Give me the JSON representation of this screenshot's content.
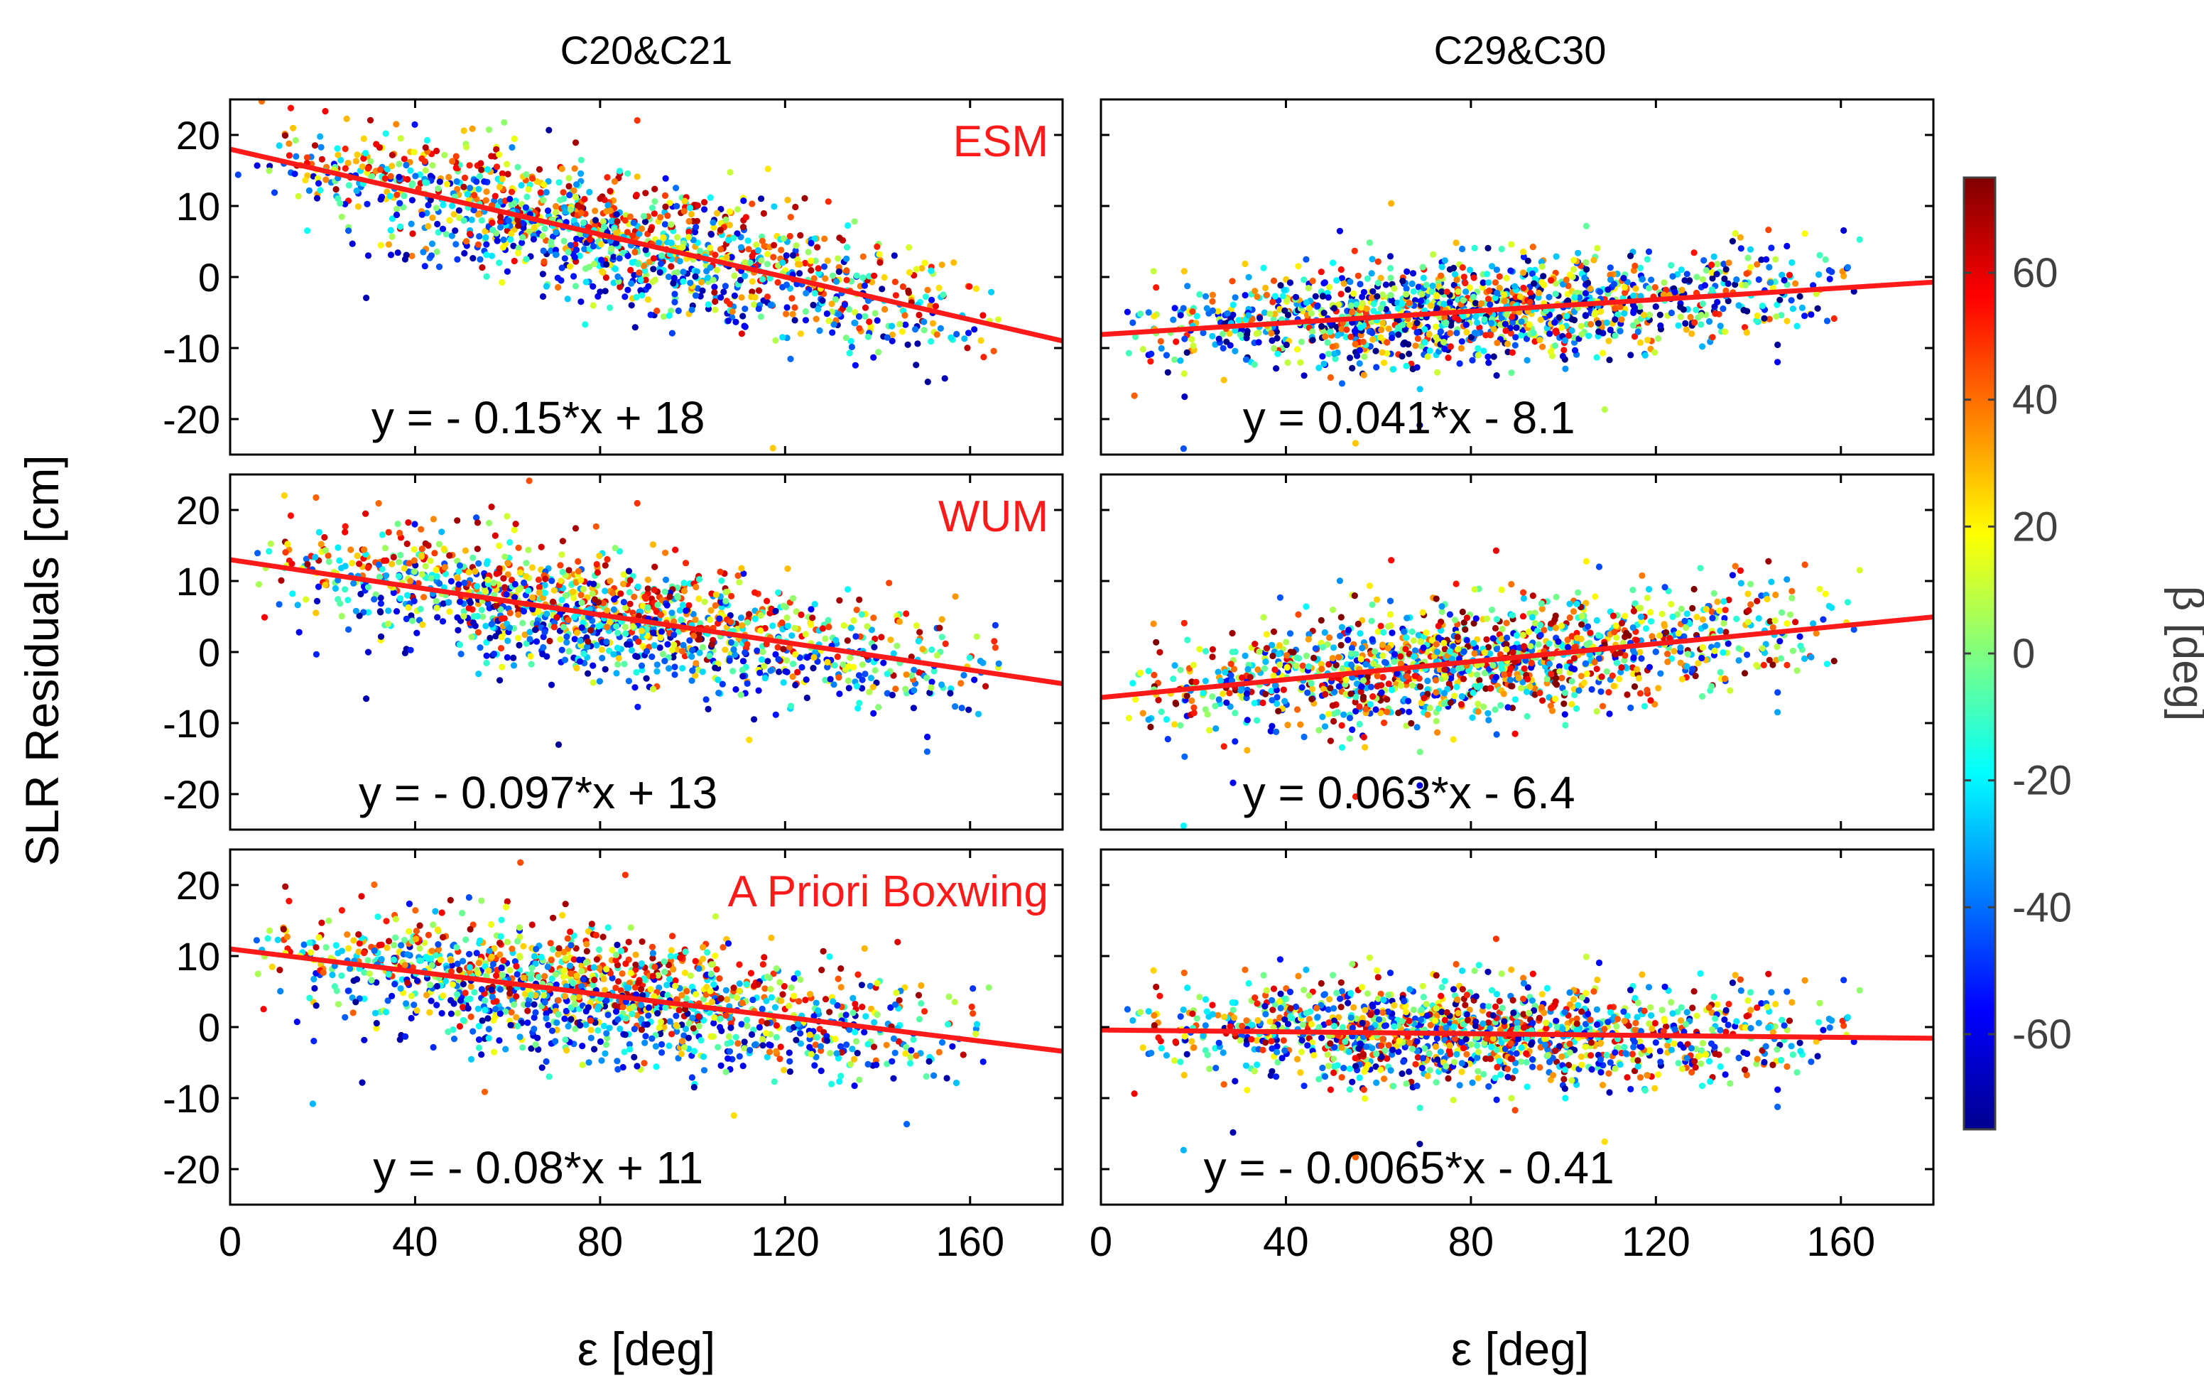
{
  "figure": {
    "column_titles": [
      "C20&C21",
      "C29&C30"
    ],
    "ylabel": "SLR Residuals [cm]",
    "xlabel": "ε [deg]",
    "row_labels": [
      "ESM",
      "WUM",
      "A Priori Boxwing"
    ],
    "colorbar": {
      "label": "β [deg]",
      "range": [
        -75,
        75
      ],
      "ticks": [
        -60,
        -40,
        -20,
        0,
        20,
        40,
        60
      ],
      "tick_labels": [
        "-60",
        "-40",
        "-20",
        "0",
        "20",
        "40",
        "60"
      ],
      "colormap": "jet"
    },
    "colors": {
      "fit_line": "#ff1a1a",
      "label": "#ff1a1a",
      "axis": "#000000",
      "colorbar_text": "#404040"
    }
  },
  "chart_data": [
    {
      "type": "scatter",
      "row": 0,
      "col": 0,
      "group": "C20&C21",
      "solution": "ESM",
      "xlim": [
        0,
        180
      ],
      "ylim": [
        -25,
        25
      ],
      "xticks": [
        0,
        40,
        80,
        120,
        160
      ],
      "yticks": [
        -20,
        -10,
        0,
        10,
        20
      ],
      "fit": {
        "slope": -0.15,
        "intercept": 18,
        "equation": "y = - 0.15*x + 18"
      },
      "point_cloud": {
        "x_range": [
          0,
          170
        ],
        "spread": 4,
        "beta_bias": 0
      }
    },
    {
      "type": "scatter",
      "row": 0,
      "col": 1,
      "group": "C29&C30",
      "solution": "ESM",
      "xlim": [
        0,
        180
      ],
      "ylim": [
        -25,
        25
      ],
      "xticks": [
        0,
        40,
        80,
        120,
        160
      ],
      "yticks": [
        -20,
        -10,
        0,
        10,
        20
      ],
      "fit": {
        "slope": 0.041,
        "intercept": -8.1,
        "equation": "y = 0.041*x - 8.1"
      },
      "point_cloud": {
        "x_range": [
          0,
          165
        ],
        "spread": 3.5,
        "beta_bias": -15
      }
    },
    {
      "type": "scatter",
      "row": 1,
      "col": 0,
      "group": "C20&C21",
      "solution": "WUM",
      "xlim": [
        0,
        180
      ],
      "ylim": [
        -25,
        25
      ],
      "xticks": [
        0,
        40,
        80,
        120,
        160
      ],
      "yticks": [
        -20,
        -10,
        0,
        10,
        20
      ],
      "fit": {
        "slope": -0.097,
        "intercept": 13,
        "equation": "y = - 0.097*x + 13"
      },
      "point_cloud": {
        "x_range": [
          0,
          170
        ],
        "spread": 3.8,
        "beta_bias": 0
      }
    },
    {
      "type": "scatter",
      "row": 1,
      "col": 1,
      "group": "C29&C30",
      "solution": "WUM",
      "xlim": [
        0,
        180
      ],
      "ylim": [
        -25,
        25
      ],
      "xticks": [
        0,
        40,
        80,
        120,
        160
      ],
      "yticks": [
        -20,
        -10,
        0,
        10,
        20
      ],
      "fit": {
        "slope": 0.063,
        "intercept": -6.4,
        "equation": "y = 0.063*x - 6.4"
      },
      "point_cloud": {
        "x_range": [
          0,
          165
        ],
        "spread": 4,
        "beta_bias": 10
      }
    },
    {
      "type": "scatter",
      "row": 2,
      "col": 0,
      "group": "C20&C21",
      "solution": "A Priori Boxwing",
      "xlim": [
        0,
        180
      ],
      "ylim": [
        -25,
        25
      ],
      "xticks": [
        0,
        40,
        80,
        120,
        160
      ],
      "yticks": [
        -20,
        -10,
        0,
        10,
        20
      ],
      "fit": {
        "slope": -0.08,
        "intercept": 11,
        "equation": "y = - 0.08*x + 11"
      },
      "point_cloud": {
        "x_range": [
          0,
          165
        ],
        "spread": 4,
        "beta_bias": 0
      }
    },
    {
      "type": "scatter",
      "row": 2,
      "col": 1,
      "group": "C29&C30",
      "solution": "A Priori Boxwing",
      "xlim": [
        0,
        180
      ],
      "ylim": [
        -25,
        25
      ],
      "xticks": [
        0,
        40,
        80,
        120,
        160
      ],
      "yticks": [
        -20,
        -10,
        0,
        10,
        20
      ],
      "fit": {
        "slope": -0.0065,
        "intercept": -0.41,
        "equation": "y = - 0.0065*x - 0.41"
      },
      "point_cloud": {
        "x_range": [
          0,
          165
        ],
        "spread": 3.5,
        "beta_bias": 0
      }
    }
  ]
}
